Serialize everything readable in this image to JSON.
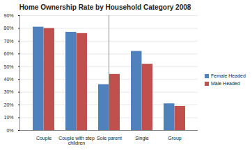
{
  "chart_data": {
    "type": "bar",
    "title": "Home Ownership Rate by Household Category 2008",
    "categories": [
      "Couple",
      "Couple with step children",
      "Sole parent",
      "Single",
      "Group"
    ],
    "series": [
      {
        "name": "Female Headed",
        "color": "#4f81bd",
        "values": [
          81,
          77,
          36,
          62,
          21
        ]
      },
      {
        "name": "Male Headed",
        "color": "#c0504d",
        "values": [
          80,
          76,
          44,
          52,
          19
        ]
      }
    ],
    "ylim": [
      0,
      90
    ],
    "yticks": [
      {
        "value": 0,
        "label": "0%"
      },
      {
        "value": 10,
        "label": "10%"
      },
      {
        "value": 20,
        "label": "20%"
      },
      {
        "value": 30,
        "label": "30%"
      },
      {
        "value": 40,
        "label": "40%"
      },
      {
        "value": 50,
        "label": "50%"
      },
      {
        "value": 60,
        "label": "60%"
      },
      {
        "value": 70,
        "label": "70%"
      },
      {
        "value": 80,
        "label": "80%"
      },
      {
        "value": 90,
        "label": "90%"
      }
    ],
    "grid": true,
    "legend": "right"
  }
}
